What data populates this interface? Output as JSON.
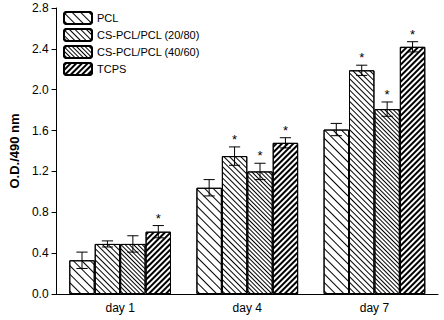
{
  "chart_data": {
    "type": "bar",
    "y_label": "O.D./490 nm",
    "categories": [
      "day 1",
      "day 4",
      "day 7"
    ],
    "series": [
      {
        "name": "PCL",
        "color": "#000000",
        "values": [
          0.33,
          1.04,
          1.61
        ],
        "errors": [
          0.08,
          0.08,
          0.06
        ],
        "significance": [
          null,
          null,
          null
        ]
      },
      {
        "name": "CS-PCL/PCL (20/80)",
        "color": "#000000",
        "values": [
          0.49,
          1.35,
          2.19
        ],
        "errors": [
          0.03,
          0.09,
          0.05
        ],
        "significance": [
          null,
          "*",
          "*"
        ]
      },
      {
        "name": "CS-PCL/PCL (40/60)",
        "color": "#000000",
        "values": [
          0.49,
          1.2,
          1.81
        ],
        "errors": [
          0.08,
          0.08,
          0.07
        ],
        "significance": [
          null,
          "*",
          "*"
        ]
      },
      {
        "name": "TCPS",
        "color": "#000000",
        "values": [
          0.61,
          1.48,
          2.42
        ],
        "errors": [
          0.06,
          0.05,
          0.05
        ],
        "significance": [
          "*",
          "*",
          "*"
        ]
      }
    ],
    "ylim": [
      0,
      2.8
    ],
    "yticks": [
      {
        "value": 0,
        "label": "0.0"
      },
      0.4,
      0.8,
      1.2,
      1.6,
      {
        "value": 2,
        "label": "2.0"
      },
      2.4,
      2.8
    ],
    "grid": false,
    "legend": "upper left"
  }
}
